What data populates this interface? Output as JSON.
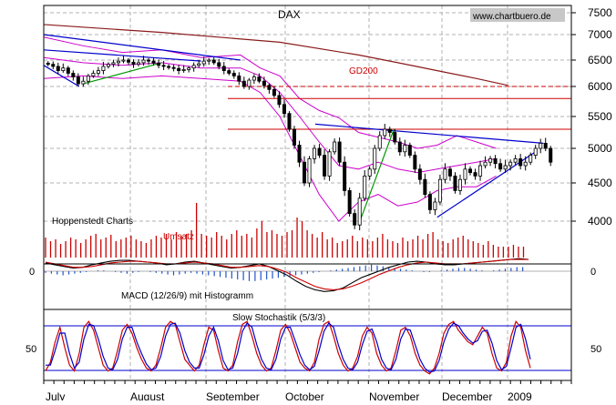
{
  "chart_data": [
    {
      "type": "candlestick",
      "title": "DAX",
      "source": "www.chartbuero.de",
      "x_months": [
        "July",
        "August",
        "September",
        "October",
        "November",
        "December",
        "2009"
      ],
      "y_ticks": [
        7500,
        7000,
        6500,
        6000,
        5500,
        5000,
        4500,
        4000
      ],
      "ylim": [
        3800,
        7700
      ],
      "grid": true,
      "price_close": [
        6420,
        6380,
        6300,
        6350,
        6250,
        6180,
        6050,
        6100,
        6200,
        6250,
        6300,
        6380,
        6420,
        6450,
        6480,
        6500,
        6460,
        6420,
        6450,
        6500,
        6480,
        6440,
        6400,
        6380,
        6360,
        6340,
        6300,
        6320,
        6350,
        6400,
        6430,
        6480,
        6500,
        6450,
        6380,
        6300,
        6250,
        6200,
        6100,
        6000,
        6120,
        6180,
        6100,
        6020,
        5950,
        5850,
        5700,
        5550,
        5300,
        5050,
        4800,
        4500,
        4850,
        5000,
        4900,
        4600,
        4950,
        5100,
        4800,
        4400,
        4100,
        3950,
        4300,
        4600,
        4700,
        5000,
        5200,
        5300,
        5250,
        5100,
        4950,
        5050,
        4900,
        4700,
        4550,
        4350,
        4150,
        4250,
        4550,
        4700,
        4600,
        4400,
        4550,
        4700,
        4650,
        4600,
        4750,
        4800,
        4850,
        4780,
        4700,
        4750,
        4800,
        4850,
        4750,
        4800,
        4900,
        5000,
        5080,
        5000,
        4800
      ],
      "gd200_label": "GD200",
      "gd200": [
        {
          "d": 0,
          "v": 7230
        },
        {
          "d": 30,
          "v": 7050
        },
        {
          "d": 60,
          "v": 6850
        },
        {
          "d": 80,
          "v": 6600
        },
        {
          "d": 90,
          "v": 6450
        },
        {
          "d": 100,
          "v": 6300
        },
        {
          "d": 110,
          "v": 6150
        },
        {
          "d": 118,
          "v": 6020
        }
      ],
      "bollinger_upper": [
        {
          "d": 0,
          "v": 6950
        },
        {
          "d": 10,
          "v": 6780
        },
        {
          "d": 20,
          "v": 6650
        },
        {
          "d": 30,
          "v": 6700
        },
        {
          "d": 40,
          "v": 6550
        },
        {
          "d": 50,
          "v": 6600
        },
        {
          "d": 55,
          "v": 6350
        },
        {
          "d": 60,
          "v": 6200
        },
        {
          "d": 65,
          "v": 5800
        },
        {
          "d": 70,
          "v": 5600
        },
        {
          "d": 75,
          "v": 5480
        },
        {
          "d": 80,
          "v": 5250
        },
        {
          "d": 90,
          "v": 5100
        },
        {
          "d": 95,
          "v": 5000
        },
        {
          "d": 100,
          "v": 5050
        },
        {
          "d": 105,
          "v": 5200
        },
        {
          "d": 110,
          "v": 5100
        },
        {
          "d": 115,
          "v": 5000
        }
      ],
      "bollinger_middle": [
        {
          "d": 0,
          "v": 6550
        },
        {
          "d": 10,
          "v": 6450
        },
        {
          "d": 20,
          "v": 6400
        },
        {
          "d": 30,
          "v": 6450
        },
        {
          "d": 40,
          "v": 6350
        },
        {
          "d": 50,
          "v": 6350
        },
        {
          "d": 55,
          "v": 6200
        },
        {
          "d": 60,
          "v": 5900
        },
        {
          "d": 65,
          "v": 5500
        },
        {
          "d": 70,
          "v": 5100
        },
        {
          "d": 75,
          "v": 4750
        },
        {
          "d": 80,
          "v": 4700
        },
        {
          "d": 85,
          "v": 4800
        },
        {
          "d": 90,
          "v": 4700
        },
        {
          "d": 95,
          "v": 4650
        },
        {
          "d": 100,
          "v": 4700
        },
        {
          "d": 105,
          "v": 4750
        },
        {
          "d": 110,
          "v": 4800
        },
        {
          "d": 115,
          "v": 4850
        }
      ],
      "bollinger_lower": [
        {
          "d": 0,
          "v": 6150
        },
        {
          "d": 10,
          "v": 6200
        },
        {
          "d": 20,
          "v": 6150
        },
        {
          "d": 30,
          "v": 6200
        },
        {
          "d": 40,
          "v": 6150
        },
        {
          "d": 50,
          "v": 6100
        },
        {
          "d": 55,
          "v": 5900
        },
        {
          "d": 60,
          "v": 5500
        },
        {
          "d": 65,
          "v": 4900
        },
        {
          "d": 70,
          "v": 4350
        },
        {
          "d": 75,
          "v": 4000
        },
        {
          "d": 80,
          "v": 4250
        },
        {
          "d": 85,
          "v": 4350
        },
        {
          "d": 90,
          "v": 4200
        },
        {
          "d": 95,
          "v": 4250
        },
        {
          "d": 100,
          "v": 4400
        },
        {
          "d": 105,
          "v": 4450
        },
        {
          "d": 110,
          "v": 4450
        },
        {
          "d": 115,
          "v": 4600
        }
      ],
      "hlines": [
        {
          "v": 6000,
          "dashed": true
        },
        {
          "v": 5800,
          "dashed": false
        },
        {
          "v": 5300,
          "dashed": false
        }
      ],
      "trendlines": [
        {
          "color": "blue",
          "p1": {
            "d": 0,
            "v": 7000
          },
          "p2": {
            "d": 50,
            "v": 6500
          }
        },
        {
          "color": "blue",
          "p1": {
            "d": 0,
            "v": 6700
          },
          "p2": {
            "d": 40,
            "v": 6480
          }
        },
        {
          "color": "blue",
          "p1": {
            "d": 0,
            "v": 6400
          },
          "p2": {
            "d": 9,
            "v": 6000
          }
        },
        {
          "color": "blue",
          "p1": {
            "d": 69,
            "v": 5380
          },
          "p2": {
            "d": 127,
            "v": 5080
          }
        },
        {
          "color": "blue",
          "p1": {
            "d": 100,
            "v": 4050
          },
          "p2": {
            "d": 125,
            "v": 4950
          }
        },
        {
          "color": "green",
          "p1": {
            "d": 10,
            "v": 6050
          },
          "p2": {
            "d": 30,
            "v": 6450
          }
        },
        {
          "color": "green",
          "p1": {
            "d": 80,
            "v": 3950
          },
          "p2": {
            "d": 89,
            "v": 5300
          }
        }
      ],
      "colors": {
        "candle_up": "#ffffff",
        "candle_down": "#000000",
        "gd200": "#8b1a1a",
        "bollinger": "#cc00cc",
        "trend_blue": "#0000cc",
        "trend_green": "#009900",
        "hline": "#cc0000"
      }
    },
    {
      "type": "bar",
      "label_left": "Hoppenstedt Charts",
      "label": "Umsatz",
      "values": [
        22,
        18,
        20,
        15,
        18,
        22,
        20,
        16,
        20,
        24,
        26,
        20,
        22,
        25,
        18,
        20,
        22,
        24,
        20,
        18,
        16,
        20,
        24,
        22,
        26,
        20,
        28,
        24,
        26,
        30,
        60,
        26,
        24,
        22,
        28,
        24,
        20,
        26,
        30,
        24,
        26,
        22,
        32,
        40,
        28,
        30,
        26,
        24,
        28,
        30,
        44,
        40,
        30,
        26,
        22,
        28,
        20,
        22,
        16,
        18,
        20,
        24,
        18,
        22,
        20,
        18,
        22,
        26,
        20,
        18,
        16,
        22,
        18,
        20,
        24,
        20,
        26,
        28,
        20,
        18,
        16,
        20,
        22,
        24,
        20,
        18,
        16,
        14,
        18,
        14,
        12,
        12,
        12,
        14,
        12,
        12
      ],
      "color": "#cc0000"
    },
    {
      "type": "line",
      "label": "MACD (12/26/9) mit Histogramm",
      "zero_label": "0",
      "series": [
        {
          "color": "#000000",
          "values": [
            -1,
            -3,
            -5,
            -7,
            -6,
            -3,
            -1,
            1,
            2,
            2,
            1,
            0,
            -1,
            -3,
            -2,
            0,
            1,
            -1,
            -3,
            -5,
            -7,
            -6,
            -4,
            -2,
            -5,
            -10,
            -15,
            -22,
            -28,
            -32,
            -34,
            -33,
            -30,
            -24,
            -18,
            -14,
            -10,
            -6,
            -3,
            0,
            1,
            0,
            -2,
            -3,
            -3,
            -2,
            -1,
            0,
            1,
            2,
            3,
            4,
            3
          ]
        },
        {
          "color": "#cc0000",
          "values": [
            0,
            -2,
            -4,
            -6,
            -6,
            -5,
            -3,
            -1,
            0,
            1,
            1,
            0,
            -1,
            -2,
            -2,
            -1,
            0,
            -1,
            -2,
            -4,
            -6,
            -6,
            -5,
            -4,
            -5,
            -8,
            -12,
            -18,
            -23,
            -28,
            -31,
            -32,
            -31,
            -28,
            -24,
            -19,
            -14,
            -10,
            -6,
            -3,
            -1,
            0,
            -1,
            -2,
            -2,
            -2,
            -1,
            0,
            1,
            2,
            3,
            3,
            3
          ]
        }
      ],
      "histogram": [
        -2,
        -3,
        -4,
        -5,
        -4,
        -3,
        -2,
        -1,
        0,
        1,
        1,
        0,
        -1,
        -2,
        -3,
        -2,
        -1,
        0,
        -1,
        -2,
        -3,
        -4,
        -5,
        -4,
        -3,
        -2,
        -3,
        -4,
        -5,
        -6,
        -7,
        -8,
        -9,
        -10,
        -11,
        -12,
        -12,
        -11,
        -10,
        -9,
        -8,
        -7,
        -6,
        -5,
        -4,
        -3,
        -2,
        -1,
        0,
        1,
        2,
        3,
        4,
        5,
        6,
        7,
        8,
        7,
        6,
        5,
        4,
        3,
        2,
        1,
        0,
        -1,
        -1,
        0,
        1,
        2,
        3,
        4,
        4,
        3,
        2,
        1,
        0,
        1,
        2,
        3,
        4,
        5,
        5
      ]
    },
    {
      "type": "line",
      "label": "Slow Stochastik (5/3/3)",
      "y_ticks": [
        50
      ],
      "ylim": [
        -5,
        105
      ],
      "levels": [
        80,
        20
      ],
      "series": [
        {
          "color": "#cc0000",
          "values": [
            10,
            25,
            60,
            85,
            50,
            20,
            10,
            40,
            85,
            95,
            80,
            50,
            20,
            10,
            15,
            45,
            80,
            90,
            75,
            50,
            30,
            15,
            10,
            20,
            50,
            85,
            95,
            90,
            60,
            30,
            20,
            10,
            20,
            55,
            85,
            80,
            45,
            15,
            10,
            20,
            60,
            90,
            95,
            70,
            40,
            20,
            10,
            15,
            45,
            80,
            90,
            75,
            50,
            25,
            15,
            10,
            25,
            65,
            90,
            95,
            70,
            40,
            20,
            10,
            15,
            35,
            70,
            85,
            75,
            40,
            20,
            10,
            15,
            45,
            80,
            85,
            70,
            40,
            20,
            10,
            5,
            15,
            40,
            75,
            90,
            95,
            80,
            70,
            60,
            55,
            70,
            85,
            75,
            40,
            15,
            10,
            25,
            70,
            95,
            85,
            45,
            15
          ]
        },
        {
          "color": "#0000cc",
          "values": [
            20,
            20,
            45,
            75,
            75,
            40,
            15,
            25,
            65,
            90,
            88,
            65,
            35,
            15,
            12,
            30,
            65,
            85,
            85,
            60,
            40,
            22,
            12,
            15,
            35,
            70,
            90,
            92,
            75,
            45,
            25,
            15,
            15,
            38,
            70,
            85,
            62,
            28,
            12,
            15,
            40,
            78,
            92,
            85,
            55,
            30,
            15,
            12,
            30,
            65,
            85,
            85,
            62,
            38,
            20,
            12,
            18,
            45,
            78,
            92,
            85,
            55,
            30,
            15,
            12,
            25,
            55,
            78,
            82,
            60,
            30,
            15,
            12,
            30,
            65,
            82,
            80,
            55,
            30,
            15,
            8,
            10,
            28,
            60,
            82,
            92,
            88,
            75,
            65,
            58,
            62,
            78,
            80,
            58,
            28,
            12,
            18,
            50,
            85,
            90,
            65,
            30
          ]
        }
      ]
    }
  ]
}
